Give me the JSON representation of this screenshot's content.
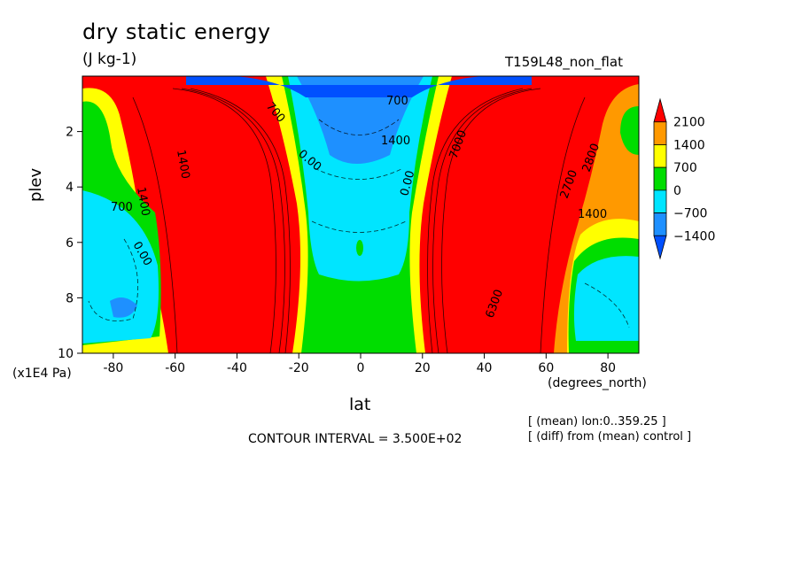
{
  "chart_data": {
    "type": "heatmap",
    "title": "dry static energy",
    "subtitle": "(J kg-1)",
    "experiment_label": "T159L48_non_flat",
    "xlabel": "lat",
    "xunits": "(degrees_north)",
    "ylabel": "plev",
    "yunits": "(x1E4 Pa)",
    "xlim": [
      -90,
      90
    ],
    "ylim": [
      0,
      10
    ],
    "y_inverted": true,
    "x_ticks": [
      -80,
      -60,
      -40,
      -20,
      0,
      20,
      40,
      60,
      80
    ],
    "x_tick_labels": [
      "-80",
      "-60",
      "-40",
      "-20",
      "0",
      "20",
      "40",
      "60",
      "80"
    ],
    "y_ticks": [
      2,
      4,
      6,
      8,
      10
    ],
    "y_tick_labels": [
      "2",
      "4",
      "6",
      "8",
      "10"
    ],
    "colorbar": {
      "levels": [
        2100,
        1400,
        700,
        0,
        -700,
        -1400
      ],
      "labels": [
        "2100",
        "1400",
        "700",
        "0",
        "−700",
        "−1400"
      ],
      "colors": [
        "#ff0000",
        "#ff9900",
        "#ffff00",
        "#00dd00",
        "#00e5ff",
        "#1e90ff",
        "#0050ff"
      ]
    },
    "contour_interval_text": "CONTOUR INTERVAL = 3.500E+02",
    "notes": [
      "[ (mean) lon:0..359.25 ]",
      "[ (diff) from (mean) control ]"
    ],
    "contour_labels": [
      "1400",
      "700",
      "0.00",
      "700",
      "1400",
      "0.00",
      "700",
      "1400",
      "7000",
      "2800",
      "2700",
      "0.00",
      "1400",
      "6300"
    ]
  }
}
